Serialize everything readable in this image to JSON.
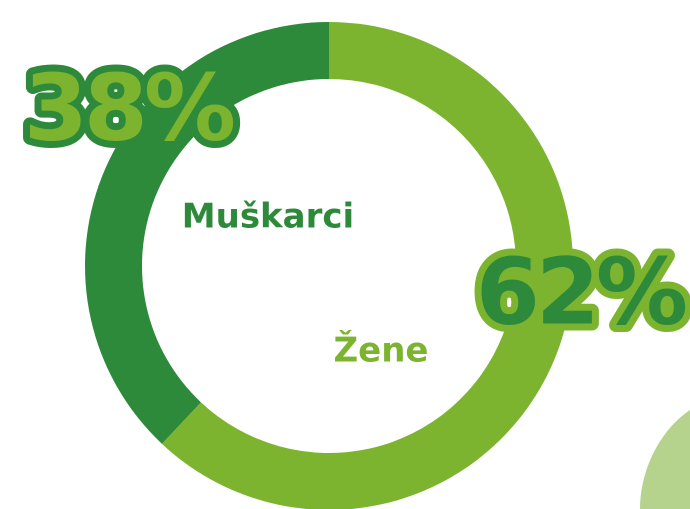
{
  "chart_data": {
    "type": "pie",
    "categories": [
      "Muškarci",
      "Žene"
    ],
    "values": [
      38,
      62
    ],
    "value_labels": [
      "38%",
      "62%"
    ],
    "colors": [
      "#2e8a3b",
      "#7cb42f"
    ]
  }
}
